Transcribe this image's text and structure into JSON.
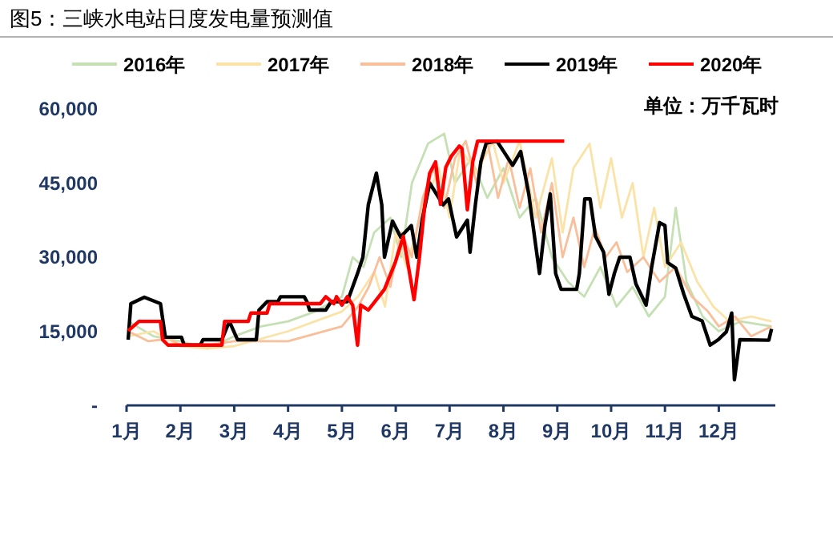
{
  "chart_data": {
    "type": "line",
    "title": "图5：三峡水电站日度发电量预测值",
    "annotations": [
      "单位：万千瓦时"
    ],
    "xlim": [
      1,
      13.05
    ],
    "xticks": [
      {
        "value": 1,
        "label": "1月"
      },
      {
        "value": 2,
        "label": "2月"
      },
      {
        "value": 3,
        "label": "3月"
      },
      {
        "value": 4,
        "label": "4月"
      },
      {
        "value": 5,
        "label": "5月"
      },
      {
        "value": 6,
        "label": "6月"
      },
      {
        "value": 7,
        "label": "7月"
      },
      {
        "value": 8,
        "label": "8月"
      },
      {
        "value": 9,
        "label": "9月"
      },
      {
        "value": 10,
        "label": "10月"
      },
      {
        "value": 11,
        "label": "11月"
      },
      {
        "value": 12,
        "label": "12月"
      }
    ],
    "ylim": [
      0,
      60000
    ],
    "yticks": [
      {
        "value": 0,
        "label": "-"
      },
      {
        "value": 15000,
        "label": "15,000"
      },
      {
        "value": 30000,
        "label": "30,000"
      },
      {
        "value": 45000,
        "label": "45,000"
      },
      {
        "value": 60000,
        "label": "60,000"
      }
    ],
    "grid": false,
    "legend": "top",
    "marker": "none",
    "line_style": "solid",
    "series": [
      {
        "name": "2016年",
        "color": "#c5e0b4",
        "x": [
          1.03,
          1.5,
          2.0,
          2.5,
          3.0,
          3.5,
          4.0,
          4.5,
          5.0,
          5.2,
          5.4,
          5.6,
          5.9,
          6.1,
          6.3,
          6.6,
          6.9,
          7.1,
          7.4,
          7.7,
          8.0,
          8.3,
          8.6,
          8.9,
          9.2,
          9.5,
          9.8,
          10.1,
          10.4,
          10.7,
          11.0,
          11.2,
          11.4,
          11.7,
          12.0,
          12.4,
          12.98
        ],
        "values": [
          17000,
          14000,
          13000,
          11500,
          14000,
          16000,
          17000,
          19000,
          22000,
          30000,
          28000,
          35000,
          38000,
          30000,
          45000,
          53000,
          55000,
          45000,
          50000,
          42000,
          48000,
          38000,
          42000,
          30000,
          25000,
          22000,
          28000,
          20000,
          24000,
          18000,
          22000,
          40000,
          25000,
          18000,
          15000,
          17000,
          16000
        ]
      },
      {
        "name": "2017年",
        "color": "#fbe3a8",
        "x": [
          1.03,
          1.5,
          2.0,
          2.5,
          3.0,
          3.5,
          4.0,
          4.5,
          5.0,
          5.3,
          5.6,
          5.8,
          6.0,
          6.2,
          6.5,
          6.8,
          7.0,
          7.2,
          7.5,
          7.8,
          8.0,
          8.3,
          8.6,
          8.9,
          9.1,
          9.3,
          9.6,
          9.8,
          10.0,
          10.2,
          10.4,
          10.6,
          10.8,
          11.0,
          11.3,
          11.6,
          11.9,
          12.2,
          12.6,
          12.98
        ],
        "values": [
          14000,
          15000,
          12000,
          11500,
          12000,
          13500,
          15000,
          17000,
          19000,
          22000,
          27000,
          20000,
          35000,
          28000,
          40000,
          48000,
          38000,
          52000,
          47000,
          53500,
          45000,
          53500,
          38000,
          50000,
          35000,
          48000,
          53000,
          40000,
          50000,
          38000,
          45000,
          30000,
          40000,
          28000,
          33000,
          25000,
          20000,
          17000,
          18000,
          17000
        ]
      },
      {
        "name": "2018年",
        "color": "#f8bf9a",
        "x": [
          1.03,
          1.4,
          1.8,
          2.0,
          2.5,
          3.0,
          3.5,
          4.0,
          4.5,
          5.0,
          5.3,
          5.5,
          5.7,
          5.9,
          6.1,
          6.3,
          6.5,
          6.7,
          6.9,
          7.1,
          7.3,
          7.5,
          7.7,
          7.9,
          8.1,
          8.3,
          8.5,
          8.7,
          8.9,
          9.1,
          9.3,
          9.5,
          9.7,
          9.9,
          10.1,
          10.3,
          10.6,
          10.9,
          11.2,
          11.5,
          11.8,
          12.0,
          12.3,
          12.6,
          12.98
        ],
        "values": [
          15000,
          13000,
          13500,
          12200,
          12200,
          13000,
          13000,
          13000,
          14500,
          16000,
          20000,
          24000,
          30000,
          24000,
          35000,
          30000,
          42000,
          48000,
          40000,
          50000,
          53500,
          45000,
          53500,
          42000,
          50000,
          40000,
          48000,
          35000,
          45000,
          30000,
          38000,
          28000,
          36000,
          30000,
          33000,
          27000,
          30000,
          25000,
          28000,
          22000,
          19000,
          16000,
          18000,
          14000,
          16000
        ]
      },
      {
        "name": "2019年",
        "color": "#000000",
        "x": [
          1.03,
          1.08,
          1.33,
          1.63,
          1.72,
          2.02,
          2.07,
          2.37,
          2.42,
          2.77,
          2.91,
          3.06,
          3.41,
          3.46,
          3.61,
          3.81,
          3.86,
          4.3,
          4.35,
          4.4,
          4.7,
          4.8,
          5.1,
          5.2,
          5.29,
          5.39,
          5.49,
          5.64,
          5.74,
          5.79,
          5.94,
          6.09,
          6.29,
          6.39,
          6.49,
          6.63,
          6.88,
          6.98,
          7.13,
          7.33,
          7.38,
          7.48,
          7.58,
          7.68,
          7.88,
          8.17,
          8.32,
          8.47,
          8.67,
          8.77,
          8.87,
          8.97,
          9.07,
          9.36,
          9.41,
          9.51,
          9.61,
          9.71,
          9.86,
          9.96,
          10.06,
          10.16,
          10.35,
          10.46,
          10.65,
          10.75,
          10.9,
          11.0,
          11.05,
          11.2,
          11.35,
          11.5,
          11.69,
          11.84,
          11.99,
          12.14,
          12.24,
          12.29,
          12.39,
          12.93,
          12.98
        ],
        "values": [
          13300,
          20600,
          21900,
          20600,
          13800,
          13800,
          12200,
          12200,
          13300,
          13300,
          17000,
          13300,
          13300,
          19300,
          21000,
          21000,
          22000,
          22000,
          21000,
          19300,
          19300,
          21000,
          21000,
          24000,
          26700,
          30000,
          40600,
          47000,
          40600,
          30000,
          37300,
          34100,
          36400,
          30000,
          37500,
          45000,
          40600,
          41800,
          34100,
          37500,
          31000,
          40700,
          49300,
          53100,
          53500,
          48600,
          51400,
          42800,
          26700,
          36400,
          42800,
          26700,
          23500,
          23500,
          26700,
          41800,
          41800,
          34200,
          31000,
          22500,
          26700,
          30000,
          30000,
          24600,
          20300,
          27800,
          37000,
          36400,
          28900,
          27800,
          22500,
          18000,
          17100,
          12200,
          13300,
          14900,
          18700,
          5200,
          13300,
          13200,
          15500
        ]
      },
      {
        "name": "2020年",
        "color": "#ff0000",
        "x": [
          1.03,
          1.23,
          1.63,
          1.67,
          1.77,
          2.77,
          2.82,
          3.26,
          3.31,
          3.61,
          3.66,
          4.6,
          4.7,
          4.85,
          4.9,
          5.0,
          5.1,
          5.2,
          5.29,
          5.35,
          5.49,
          5.64,
          5.79,
          5.99,
          6.14,
          6.24,
          6.34,
          6.44,
          6.54,
          6.63,
          6.74,
          6.83,
          6.93,
          7.03,
          7.18,
          7.23,
          7.33,
          7.43,
          7.52,
          9.13
        ],
        "values": [
          15100,
          17000,
          17000,
          13300,
          12200,
          12200,
          17000,
          17000,
          18700,
          18700,
          20600,
          20600,
          22000,
          20600,
          22000,
          20300,
          22000,
          20300,
          12200,
          20300,
          19300,
          21400,
          23500,
          28900,
          34200,
          27800,
          21400,
          30000,
          40700,
          47000,
          49300,
          40700,
          48200,
          50400,
          52500,
          52000,
          39600,
          49300,
          53500,
          53500
        ]
      }
    ]
  }
}
